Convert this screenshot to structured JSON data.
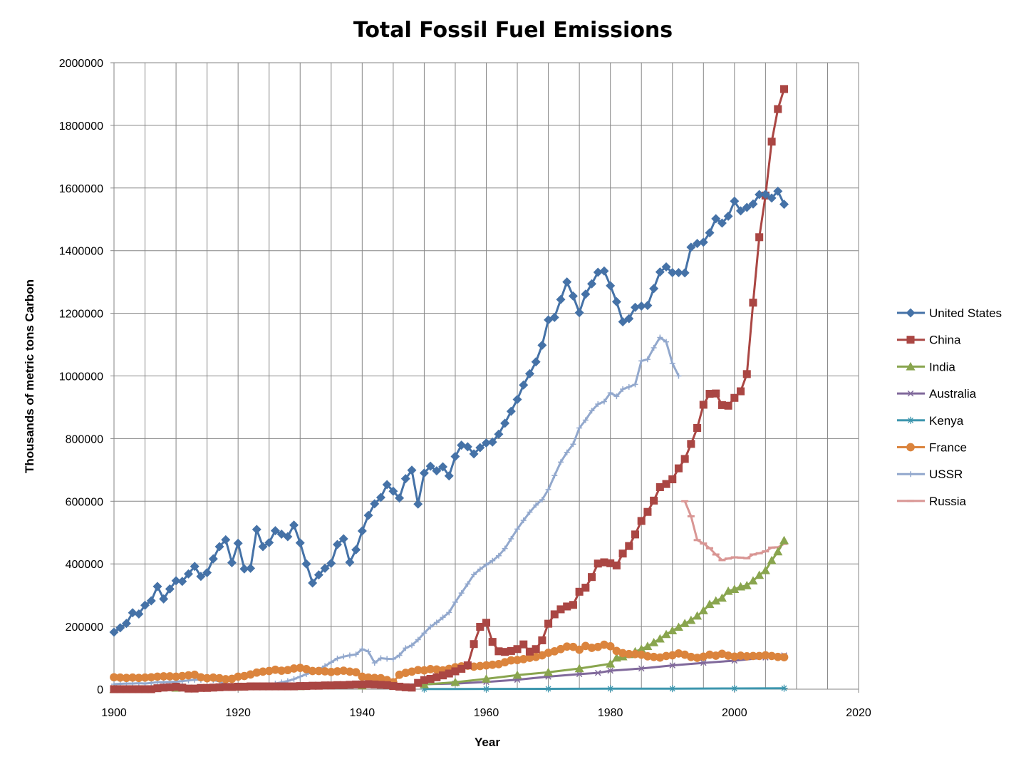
{
  "chart_data": {
    "type": "line",
    "title": "Total Fossil Fuel Emissions",
    "xlabel": "Year",
    "ylabel": "Thousands of metric tons Carbon",
    "xlim": [
      1900,
      2020
    ],
    "ylim": [
      0,
      2000000
    ],
    "xticks": [
      1900,
      1920,
      1940,
      1960,
      1980,
      2000,
      2020
    ],
    "yticks": [
      0,
      200000,
      400000,
      600000,
      800000,
      1000000,
      1200000,
      1400000,
      1600000,
      1800000,
      2000000
    ],
    "grid": true,
    "legend_position": "right",
    "series": [
      {
        "name": "United States",
        "color": "#4572A7",
        "marker": "diamond",
        "x": [
          1900,
          1901,
          1902,
          1903,
          1904,
          1905,
          1906,
          1907,
          1908,
          1909,
          1910,
          1911,
          1912,
          1913,
          1914,
          1915,
          1916,
          1917,
          1918,
          1919,
          1920,
          1921,
          1922,
          1923,
          1924,
          1925,
          1926,
          1927,
          1928,
          1929,
          1930,
          1931,
          1932,
          1933,
          1934,
          1935,
          1936,
          1937,
          1938,
          1939,
          1940,
          1941,
          1942,
          1943,
          1944,
          1945,
          1946,
          1947,
          1948,
          1949,
          1950,
          1951,
          1952,
          1953,
          1954,
          1955,
          1956,
          1957,
          1958,
          1959,
          1960,
          1961,
          1962,
          1963,
          1964,
          1965,
          1966,
          1967,
          1968,
          1969,
          1970,
          1971,
          1972,
          1973,
          1974,
          1975,
          1976,
          1977,
          1978,
          1979,
          1980,
          1981,
          1982,
          1983,
          1984,
          1985,
          1986,
          1987,
          1988,
          1989,
          1990,
          1991,
          1992,
          1993,
          1994,
          1995,
          1996,
          1997,
          1998,
          1999,
          2000,
          2001,
          2002,
          2003,
          2004,
          2005,
          2006,
          2007,
          2008
        ],
        "y": [
          182000,
          196000,
          210000,
          244000,
          240000,
          268000,
          282000,
          328000,
          288000,
          320000,
          346000,
          344000,
          368000,
          392000,
          360000,
          372000,
          416000,
          455000,
          477000,
          404000,
          466000,
          384000,
          386000,
          510000,
          455000,
          468000,
          506000,
          495000,
          487000,
          524000,
          467000,
          400000,
          339000,
          365000,
          386000,
          402000,
          462000,
          480000,
          405000,
          445000,
          505000,
          555000,
          592000,
          612000,
          653000,
          632000,
          610000,
          672000,
          699000,
          591000,
          690000,
          712000,
          697000,
          710000,
          681000,
          743000,
          779000,
          774000,
          751000,
          771000,
          786000,
          789000,
          814000,
          849000,
          887000,
          925000,
          971000,
          1007000,
          1045000,
          1098000,
          1179000,
          1187000,
          1244000,
          1300000,
          1255000,
          1202000,
          1261000,
          1294000,
          1331000,
          1335000,
          1288000,
          1237000,
          1173000,
          1183000,
          1219000,
          1223000,
          1225000,
          1279000,
          1332000,
          1348000,
          1330000,
          1330000,
          1329000,
          1411000,
          1423000,
          1427000,
          1457000,
          1502000,
          1488000,
          1510000,
          1558000,
          1527000,
          1538000,
          1549000,
          1579000,
          1580000,
          1568000,
          1590000,
          1548000
        ]
      },
      {
        "name": "China",
        "color": "#AA4643",
        "marker": "square",
        "x": [
          1900,
          1901,
          1902,
          1903,
          1904,
          1905,
          1906,
          1907,
          1908,
          1909,
          1910,
          1911,
          1912,
          1913,
          1914,
          1915,
          1916,
          1917,
          1918,
          1919,
          1920,
          1921,
          1922,
          1923,
          1924,
          1925,
          1926,
          1927,
          1928,
          1929,
          1930,
          1931,
          1932,
          1933,
          1934,
          1935,
          1936,
          1937,
          1938,
          1939,
          1940,
          1941,
          1942,
          1943,
          1944,
          1945,
          1946,
          1947,
          1948,
          1949,
          1950,
          1951,
          1952,
          1953,
          1954,
          1955,
          1956,
          1957,
          1958,
          1959,
          1960,
          1961,
          1962,
          1963,
          1964,
          1965,
          1966,
          1967,
          1968,
          1969,
          1970,
          1971,
          1972,
          1973,
          1974,
          1975,
          1976,
          1977,
          1978,
          1979,
          1980,
          1981,
          1982,
          1983,
          1984,
          1985,
          1986,
          1987,
          1988,
          1989,
          1990,
          1991,
          1992,
          1993,
          1994,
          1995,
          1996,
          1997,
          1998,
          1999,
          2000,
          2001,
          2002,
          2003,
          2004,
          2005,
          2006,
          2007,
          2008
        ],
        "y": [
          0,
          0,
          0,
          0,
          0,
          0,
          0,
          3000,
          5000,
          6000,
          8000,
          5000,
          2000,
          2000,
          4000,
          4000,
          5000,
          6000,
          7000,
          7000,
          8000,
          8000,
          9000,
          9000,
          9000,
          9000,
          9000,
          9000,
          9000,
          9000,
          10000,
          10000,
          11000,
          11000,
          12000,
          12000,
          13000,
          13000,
          14000,
          15000,
          15000,
          16000,
          15000,
          14000,
          13000,
          10000,
          8000,
          6000,
          5000,
          20000,
          29000,
          33000,
          38000,
          44000,
          50000,
          57000,
          65000,
          76000,
          144000,
          199000,
          212000,
          151000,
          121000,
          119000,
          122000,
          128000,
          143000,
          120000,
          128000,
          156000,
          209000,
          239000,
          255000,
          264000,
          269000,
          311000,
          324000,
          358000,
          401000,
          405000,
          402000,
          395000,
          433000,
          457000,
          494000,
          537000,
          566000,
          602000,
          645000,
          655000,
          670000,
          705000,
          735000,
          783000,
          834000,
          908000,
          943000,
          944000,
          907000,
          905000,
          930000,
          951000,
          1006000,
          1234000,
          1443000,
          1576000,
          1748000,
          1852000,
          1916000
        ]
      },
      {
        "name": "India",
        "color": "#89A54E",
        "marker": "triangle",
        "x": [
          1900,
          1910,
          1920,
          1930,
          1940,
          1945,
          1950,
          1955,
          1960,
          1965,
          1970,
          1975,
          1980,
          1981,
          1982,
          1983,
          1984,
          1985,
          1986,
          1987,
          1988,
          1989,
          1990,
          1991,
          1992,
          1993,
          1994,
          1995,
          1996,
          1997,
          1998,
          1999,
          2000,
          2001,
          2002,
          2003,
          2004,
          2005,
          2006,
          2007,
          2008
        ],
        "y": [
          0,
          4000,
          7000,
          9000,
          11000,
          12000,
          15000,
          22000,
          33000,
          45000,
          54000,
          66000,
          81000,
          100000,
          104000,
          111000,
          120000,
          128000,
          137000,
          149000,
          161000,
          175000,
          187000,
          198000,
          210000,
          220000,
          234000,
          251000,
          271000,
          282000,
          291000,
          313000,
          319000,
          327000,
          331000,
          346000,
          364000,
          379000,
          411000,
          439000,
          475000
        ]
      },
      {
        "name": "Australia",
        "color": "#80699B",
        "marker": "x",
        "x": [
          1900,
          1910,
          1920,
          1930,
          1940,
          1950,
          1955,
          1960,
          1965,
          1970,
          1975,
          1978,
          1980,
          1985,
          1990,
          1995,
          2000,
          2005,
          2008
        ],
        "y": [
          4000,
          6000,
          8000,
          8000,
          11000,
          16000,
          18000,
          23000,
          30000,
          40000,
          48000,
          52000,
          59000,
          66000,
          76000,
          84000,
          91000,
          101000,
          108000
        ]
      },
      {
        "name": "Kenya",
        "color": "#3D96AE",
        "marker": "star",
        "x": [
          1950,
          1960,
          1970,
          1980,
          1990,
          2000,
          2008
        ],
        "y": [
          500,
          800,
          1200,
          1600,
          1600,
          2200,
          3000
        ]
      },
      {
        "name": "France",
        "color": "#DB843D",
        "marker": "circle",
        "x": [
          1900,
          1901,
          1902,
          1903,
          1904,
          1905,
          1906,
          1907,
          1908,
          1909,
          1910,
          1911,
          1912,
          1913,
          1914,
          1915,
          1916,
          1917,
          1918,
          1919,
          1920,
          1921,
          1922,
          1923,
          1924,
          1925,
          1926,
          1927,
          1928,
          1929,
          1930,
          1931,
          1932,
          1933,
          1934,
          1935,
          1936,
          1937,
          1938,
          1939,
          1940,
          1941,
          1942,
          1943,
          1944,
          1945,
          1946,
          1947,
          1948,
          1949,
          1950,
          1951,
          1952,
          1953,
          1954,
          1955,
          1956,
          1957,
          1958,
          1959,
          1960,
          1961,
          1962,
          1963,
          1964,
          1965,
          1966,
          1967,
          1968,
          1969,
          1970,
          1971,
          1972,
          1973,
          1974,
          1975,
          1976,
          1977,
          1978,
          1979,
          1980,
          1981,
          1982,
          1983,
          1984,
          1985,
          1986,
          1987,
          1988,
          1989,
          1990,
          1991,
          1992,
          1993,
          1994,
          1995,
          1996,
          1997,
          1998,
          1999,
          2000,
          2001,
          2002,
          2003,
          2004,
          2005,
          2006,
          2007,
          2008
        ],
        "y": [
          38000,
          37000,
          36000,
          37000,
          36000,
          37000,
          38000,
          40000,
          41000,
          41000,
          40000,
          42000,
          44000,
          46000,
          38000,
          35000,
          37000,
          35000,
          32000,
          33000,
          40000,
          42000,
          47000,
          53000,
          56000,
          58000,
          62000,
          59000,
          61000,
          66000,
          68000,
          64000,
          58000,
          58000,
          57000,
          55000,
          57000,
          59000,
          56000,
          54000,
          40000,
          37000,
          36000,
          35000,
          29000,
          22000,
          46000,
          52000,
          56000,
          61000,
          60000,
          64000,
          63000,
          60000,
          65000,
          70000,
          73000,
          75000,
          72000,
          74000,
          76000,
          78000,
          80000,
          86000,
          92000,
          93000,
          96000,
          100000,
          103000,
          108000,
          116000,
          121000,
          128000,
          136000,
          135000,
          126000,
          138000,
          132000,
          135000,
          142000,
          137000,
          122000,
          115000,
          112000,
          112000,
          110000,
          105000,
          103000,
          101000,
          106000,
          108000,
          114000,
          110000,
          103000,
          100000,
          104000,
          110000,
          107000,
          113000,
          107000,
          104000,
          107000,
          105000,
          106000,
          106000,
          108000,
          106000,
          103000,
          102000
        ]
      },
      {
        "name": "USSR",
        "color": "#92A8CD",
        "marker": "plus",
        "x": [
          1900,
          1901,
          1902,
          1903,
          1904,
          1905,
          1906,
          1907,
          1908,
          1909,
          1910,
          1911,
          1912,
          1913,
          1914,
          1915,
          1916,
          1917,
          1918,
          1919,
          1920,
          1921,
          1922,
          1923,
          1924,
          1925,
          1926,
          1927,
          1928,
          1929,
          1930,
          1931,
          1932,
          1933,
          1934,
          1935,
          1936,
          1937,
          1938,
          1939,
          1940,
          1941,
          1942,
          1943,
          1944,
          1945,
          1946,
          1947,
          1948,
          1949,
          1950,
          1951,
          1952,
          1953,
          1954,
          1955,
          1956,
          1957,
          1958,
          1959,
          1960,
          1961,
          1962,
          1963,
          1964,
          1965,
          1966,
          1967,
          1968,
          1969,
          1970,
          1971,
          1972,
          1973,
          1974,
          1975,
          1976,
          1977,
          1978,
          1979,
          1980,
          1981,
          1982,
          1983,
          1984,
          1985,
          1986,
          1987,
          1988,
          1989,
          1990,
          1991
        ],
        "y": [
          16000,
          17000,
          18000,
          18000,
          19000,
          18000,
          20000,
          22000,
          22000,
          23000,
          24000,
          26000,
          28000,
          30000,
          30000,
          32000,
          29000,
          25000,
          12000,
          8000,
          6000,
          7000,
          8000,
          10000,
          12000,
          14000,
          18000,
          22000,
          26000,
          32000,
          40000,
          48000,
          55000,
          62000,
          74000,
          86000,
          98000,
          104000,
          108000,
          111000,
          128000,
          120000,
          84000,
          99000,
          97000,
          96000,
          108000,
          131000,
          140000,
          158000,
          179000,
          199000,
          213000,
          229000,
          245000,
          278000,
          307000,
          336000,
          366000,
          383000,
          397000,
          410000,
          426000,
          449000,
          480000,
          511000,
          539000,
          565000,
          588000,
          605000,
          637000,
          682000,
          725000,
          756000,
          782000,
          834000,
          859000,
          889000,
          910000,
          918000,
          946000,
          935000,
          958000,
          965000,
          973000,
          1048000,
          1053000,
          1090000,
          1123000,
          1109000,
          1040000,
          1000000
        ]
      },
      {
        "name": "Russia",
        "color": "#D99694",
        "marker": "dash",
        "x": [
          1992,
          1993,
          1994,
          1995,
          1996,
          1997,
          1998,
          1999,
          2000,
          2001,
          2002,
          2003,
          2004,
          2005,
          2006,
          2007,
          2008
        ],
        "y": [
          600000,
          552000,
          476000,
          465000,
          450000,
          430000,
          412000,
          417000,
          421000,
          420000,
          418000,
          430000,
          434000,
          440000,
          452000,
          453000,
          464000
        ]
      }
    ]
  }
}
